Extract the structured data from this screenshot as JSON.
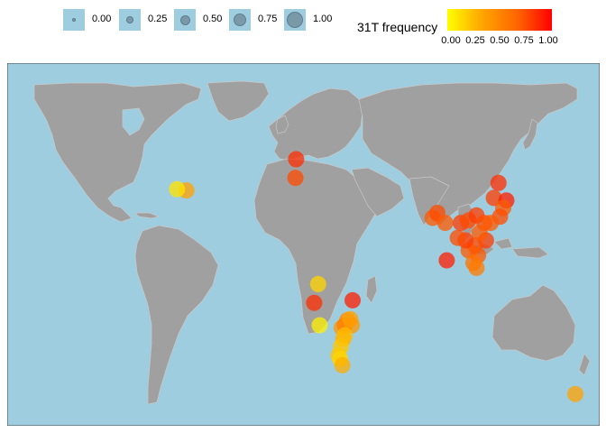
{
  "size_legend": {
    "items": [
      {
        "label": "0.00",
        "value": 0.0
      },
      {
        "label": "0.25",
        "value": 0.25
      },
      {
        "label": "0.50",
        "value": 0.5
      },
      {
        "label": "0.75",
        "value": 0.75
      },
      {
        "label": "1.00",
        "value": 1.0
      }
    ]
  },
  "color_legend": {
    "title": "31T frequency",
    "ticks": [
      "0.00",
      "0.25",
      "0.50",
      "0.75",
      "1.00"
    ],
    "low_color": "#ffff00",
    "high_color": "#ff0000"
  },
  "colors": {
    "ocean": "#9ecde0",
    "land": "#a0a0a0",
    "borders": "#c8c8c8"
  },
  "points": [
    {
      "lon": -73,
      "lat": 41,
      "v": 0.35
    },
    {
      "lon": -79,
      "lat": 41.5,
      "v": 0.1
    },
    {
      "lon": -3,
      "lat": 53.5,
      "v": 0.85
    },
    {
      "lon": -3.5,
      "lat": 46,
      "v": 0.75
    },
    {
      "lon": 11,
      "lat": 3.5,
      "v": 0.15
    },
    {
      "lon": 8.5,
      "lat": -4,
      "v": 0.85
    },
    {
      "lon": 12,
      "lat": -13,
      "v": 0.05
    },
    {
      "lon": 33,
      "lat": -3,
      "v": 0.9
    },
    {
      "lon": 26,
      "lat": -14,
      "v": 0.4
    },
    {
      "lon": 28,
      "lat": -13,
      "v": 0.55
    },
    {
      "lon": 29.5,
      "lat": -11,
      "v": 0.5
    },
    {
      "lon": 31.5,
      "lat": -10.5,
      "v": 0.35
    },
    {
      "lon": 32.5,
      "lat": -13,
      "v": 0.4
    },
    {
      "lon": 27,
      "lat": -18.5,
      "v": 0.3
    },
    {
      "lon": 25.5,
      "lat": -21.5,
      "v": 0.2
    },
    {
      "lon": 24,
      "lat": -25,
      "v": 0.2
    },
    {
      "lon": 25,
      "lat": -26.5,
      "v": 0.15
    },
    {
      "lon": 26.5,
      "lat": -29,
      "v": 0.3
    },
    {
      "lon": 28,
      "lat": -17,
      "v": 0.25
    },
    {
      "lon": 175,
      "lat": -40.5,
      "v": 0.35
    },
    {
      "lon": 126,
      "lat": 44,
      "v": 0.85
    },
    {
      "lon": 123,
      "lat": 38,
      "v": 0.8
    },
    {
      "lon": 131,
      "lat": 37,
      "v": 0.9
    },
    {
      "lon": 129,
      "lat": 34,
      "v": 0.7
    },
    {
      "lon": 127,
      "lat": 30.5,
      "v": 0.75
    },
    {
      "lon": 84,
      "lat": 30,
      "v": 0.7
    },
    {
      "lon": 87,
      "lat": 32,
      "v": 0.75
    },
    {
      "lon": 92,
      "lat": 28,
      "v": 0.7
    },
    {
      "lon": 102,
      "lat": 28,
      "v": 0.8
    },
    {
      "lon": 107,
      "lat": 29,
      "v": 0.75
    },
    {
      "lon": 112,
      "lat": 31,
      "v": 0.8
    },
    {
      "lon": 117,
      "lat": 28,
      "v": 0.75
    },
    {
      "lon": 121,
      "lat": 28,
      "v": 0.7
    },
    {
      "lon": 118,
      "lat": 21,
      "v": 0.8
    },
    {
      "lon": 111,
      "lat": 19,
      "v": 0.75
    },
    {
      "lon": 107,
      "lat": 17,
      "v": 0.7
    },
    {
      "lon": 113,
      "lat": 15,
      "v": 0.7
    },
    {
      "lon": 110,
      "lat": 12,
      "v": 0.6
    },
    {
      "lon": 112,
      "lat": 10,
      "v": 0.55
    },
    {
      "lon": 93,
      "lat": 13,
      "v": 0.9
    },
    {
      "lon": 105,
      "lat": 21,
      "v": 0.8
    },
    {
      "lon": 100,
      "lat": 22,
      "v": 0.75
    },
    {
      "lon": 114,
      "lat": 24,
      "v": 0.7
    }
  ]
}
